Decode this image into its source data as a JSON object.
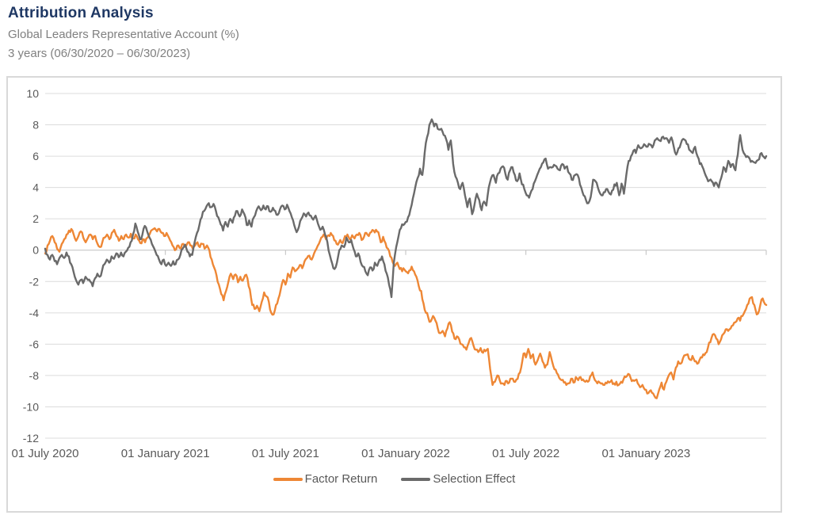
{
  "header": {
    "title": "Attribution Analysis",
    "subtitle1": "Global Leaders Representative Account (%)",
    "subtitle2": "3 years (06/30/2020 – 06/30/2023)"
  },
  "colors": {
    "title_text": "#1F3864",
    "subtitle_text": "#808080",
    "axis_text": "#595959",
    "grid": "#DCDCDC",
    "zero_line": "#BFBFBF",
    "panel_border": "#D9D9D9",
    "factor_return": "#EE8735",
    "selection_effect": "#6A6A6A"
  },
  "chart_data": {
    "type": "line",
    "title": "Attribution Analysis",
    "subtitle": "Global Leaders Representative Account (%), 3 years (06/30/2020 – 06/30/2023)",
    "xlabel": "",
    "ylabel": "",
    "ylim": [
      -12,
      10
    ],
    "y_tick_step": 2,
    "y_ticks": [
      10,
      8,
      6,
      4,
      2,
      0,
      -2,
      -4,
      -6,
      -8,
      -10,
      -12
    ],
    "x_labels": [
      "01 July 2020",
      "01 January 2021",
      "01 July 2021",
      "01 January 2022",
      "01 July 2022",
      "01 January 2023"
    ],
    "x_range_note": "series values sampled uniformly in time from 01 Jul 2020 to 30 Jun 2023",
    "grid": "horizontal",
    "legend_position": "bottom-center",
    "noise_amplitude": 0.15,
    "series": [
      {
        "name": "Factor Return",
        "key": "factor-return",
        "color": "#EE8735",
        "values": [
          -0.2,
          0.3,
          0.6,
          0.9,
          0.5,
          0.1,
          -0.1,
          0.4,
          0.7,
          1.0,
          1.25,
          1.35,
          1.0,
          0.6,
          0.9,
          1.2,
          0.8,
          0.5,
          0.8,
          1.0,
          0.7,
          0.9,
          0.4,
          0.2,
          0.5,
          0.8,
          1.0,
          0.7,
          1.1,
          1.3,
          0.9,
          0.6,
          0.9,
          0.7,
          1.0,
          0.8,
          1.05,
          0.75,
          1.0,
          0.7,
          0.45,
          0.7,
          0.5,
          0.8,
          1.05,
          1.3,
          1.4,
          1.2,
          1.35,
          1.1,
          0.9,
          1.1,
          0.8,
          0.5,
          0.2,
          0.05,
          0.3,
          0.1,
          0.4,
          0.2,
          0.5,
          0.3,
          0.1,
          0.3,
          0.5,
          0.2,
          0.4,
          0.1,
          0.3,
          0.0,
          -0.6,
          -1.1,
          -1.6,
          -2.2,
          -2.8,
          -3.2,
          -2.6,
          -2.0,
          -1.5,
          -1.85,
          -1.55,
          -2.05,
          -1.7,
          -1.95,
          -1.6,
          -1.8,
          -2.5,
          -3.5,
          -3.75,
          -3.55,
          -3.9,
          -3.3,
          -2.7,
          -2.95,
          -3.3,
          -4.0,
          -4.1,
          -3.5,
          -3.1,
          -2.5,
          -1.9,
          -2.2,
          -1.5,
          -1.75,
          -1.1,
          -1.35,
          -1.2,
          -0.95,
          -1.15,
          -0.7,
          -0.5,
          -0.35,
          -0.6,
          -0.2,
          0.1,
          0.4,
          0.8,
          1.0,
          0.7,
          0.95,
          1.1,
          0.9,
          0.6,
          0.35,
          0.65,
          0.45,
          0.9,
          1.0,
          0.7,
          0.95,
          0.75,
          1.0,
          1.1,
          0.65,
          0.85,
          1.1,
          0.9,
          1.15,
          1.25,
          1.3,
          1.15,
          0.5,
          0.85,
          0.45,
          0.1,
          -0.4,
          -0.75,
          -1.0,
          -0.8,
          -1.2,
          -1.35,
          -1.25,
          -1.4,
          -1.3,
          -1.05,
          -1.35,
          -1.7,
          -2.3,
          -2.6,
          -3.4,
          -4.0,
          -4.3,
          -4.55,
          -4.2,
          -4.5,
          -5.0,
          -5.3,
          -5.15,
          -5.5,
          -5.0,
          -4.6,
          -5.2,
          -5.65,
          -5.5,
          -5.7,
          -6.0,
          -6.2,
          -6.35,
          -5.9,
          -5.6,
          -6.1,
          -6.35,
          -6.5,
          -6.25,
          -6.55,
          -6.45,
          -6.3,
          -7.6,
          -8.6,
          -8.4,
          -8.0,
          -8.3,
          -8.5,
          -8.6,
          -8.35,
          -8.45,
          -8.2,
          -8.4,
          -8.25,
          -7.9,
          -7.5,
          -6.6,
          -6.85,
          -6.3,
          -6.9,
          -6.65,
          -7.3,
          -7.0,
          -6.6,
          -7.1,
          -7.5,
          -7.3,
          -6.5,
          -7.1,
          -7.6,
          -7.85,
          -8.15,
          -8.3,
          -8.45,
          -8.6,
          -8.5,
          -8.2,
          -8.45,
          -8.1,
          -8.3,
          -8.1,
          -8.25,
          -8.4,
          -8.4,
          -8.05,
          -7.8,
          -8.3,
          -8.5,
          -8.45,
          -8.5,
          -8.6,
          -8.5,
          -8.45,
          -8.3,
          -8.5,
          -8.4,
          -8.6,
          -8.4,
          -8.25,
          -8.1,
          -7.9,
          -8.15,
          -8.3,
          -8.3,
          -8.5,
          -8.75,
          -8.6,
          -8.9,
          -9.15,
          -9.0,
          -9.1,
          -9.3,
          -9.45,
          -8.9,
          -8.45,
          -8.9,
          -8.4,
          -8.0,
          -7.8,
          -8.25,
          -7.5,
          -7.1,
          -7.25,
          -6.9,
          -6.7,
          -6.65,
          -7.0,
          -6.75,
          -7.1,
          -7.25,
          -7.0,
          -6.85,
          -6.7,
          -6.5,
          -5.9,
          -5.6,
          -5.35,
          -5.65,
          -6.0,
          -5.7,
          -5.35,
          -5.05,
          -5.15,
          -5.0,
          -4.8,
          -4.6,
          -4.35,
          -4.5,
          -4.2,
          -3.9,
          -3.5,
          -3.1,
          -3.0,
          -3.5,
          -4.1,
          -3.85,
          -3.15,
          -3.3,
          -3.5
        ]
      },
      {
        "name": "Selection Effect",
        "key": "selection-effect",
        "color": "#6A6A6A",
        "values": [
          0.1,
          -0.3,
          -0.6,
          -0.3,
          -0.7,
          -0.9,
          -0.5,
          -0.3,
          -0.5,
          -0.15,
          -0.4,
          -0.9,
          -1.4,
          -1.9,
          -2.2,
          -1.9,
          -2.1,
          -1.7,
          -1.9,
          -2.0,
          -2.3,
          -1.8,
          -1.5,
          -1.7,
          -1.3,
          -0.9,
          -0.6,
          -0.8,
          -0.4,
          -0.55,
          -0.2,
          -0.45,
          -0.15,
          -0.4,
          -0.1,
          0.15,
          0.5,
          1.0,
          1.7,
          1.2,
          0.7,
          1.0,
          1.55,
          1.2,
          0.8,
          0.4,
          0.1,
          -0.3,
          -0.6,
          -0.9,
          -0.6,
          -1.0,
          -0.8,
          -1.0,
          -0.7,
          -0.9,
          -0.6,
          -0.3,
          0.1,
          0.35,
          -0.1,
          -0.4,
          -0.3,
          0.5,
          1.1,
          1.6,
          2.1,
          2.5,
          2.8,
          3.0,
          2.75,
          2.95,
          2.5,
          2.1,
          1.65,
          1.25,
          1.8,
          1.5,
          2.0,
          1.75,
          2.2,
          2.5,
          2.15,
          2.6,
          2.3,
          1.6,
          1.9,
          1.5,
          2.1,
          2.5,
          2.8,
          2.55,
          2.85,
          2.6,
          2.8,
          2.45,
          2.7,
          2.5,
          2.25,
          2.6,
          2.85,
          2.6,
          2.9,
          2.5,
          2.1,
          1.6,
          1.15,
          1.5,
          2.0,
          2.35,
          2.15,
          2.4,
          2.2,
          1.95,
          2.2,
          1.7,
          1.3,
          1.5,
          1.0,
          0.5,
          -0.3,
          -0.85,
          -1.2,
          -0.8,
          0.0,
          0.3,
          0.2,
          0.8,
          0.5,
          0.65,
          0.1,
          -0.4,
          -0.2,
          -0.75,
          -1.05,
          -1.35,
          -1.6,
          -1.1,
          -1.3,
          -0.8,
          -1.0,
          -0.6,
          -0.4,
          -0.9,
          -1.5,
          -2.2,
          -3.0,
          -0.8,
          0.2,
          0.9,
          1.4,
          1.6,
          1.8,
          2.1,
          2.6,
          3.3,
          4.0,
          4.6,
          5.2,
          4.8,
          6.2,
          7.2,
          8.0,
          8.35,
          7.9,
          8.05,
          7.7,
          7.75,
          7.35,
          7.1,
          6.4,
          7.0,
          5.5,
          4.7,
          4.3,
          3.9,
          4.3,
          3.5,
          2.75,
          3.3,
          2.3,
          2.9,
          3.6,
          3.2,
          2.55,
          3.1,
          2.85,
          4.0,
          4.6,
          4.8,
          4.3,
          4.9,
          5.2,
          5.35,
          4.9,
          4.5,
          5.1,
          5.3,
          4.8,
          4.4,
          4.9,
          4.2,
          3.9,
          3.5,
          3.35,
          3.8,
          4.25,
          4.6,
          5.0,
          5.3,
          5.6,
          5.85,
          5.2,
          5.3,
          5.3,
          5.4,
          5.2,
          5.1,
          5.5,
          5.2,
          5.35,
          4.9,
          4.5,
          4.75,
          4.85,
          4.6,
          4.0,
          3.5,
          3.2,
          3.0,
          3.4,
          4.5,
          4.4,
          4.0,
          3.6,
          3.5,
          3.7,
          3.9,
          3.6,
          3.8,
          4.2,
          4.3,
          3.5,
          4.25,
          3.6,
          4.8,
          5.7,
          6.0,
          6.35,
          6.2,
          6.7,
          6.5,
          6.6,
          6.7,
          6.6,
          6.75,
          6.55,
          7.0,
          7.15,
          7.0,
          7.2,
          7.1,
          7.15,
          6.85,
          7.2,
          6.6,
          6.1,
          6.5,
          6.8,
          7.1,
          7.0,
          6.75,
          6.35,
          6.2,
          6.6,
          6.0,
          5.5,
          5.35,
          4.95,
          4.6,
          4.45,
          4.4,
          4.1,
          4.3,
          4.0,
          4.6,
          5.3,
          5.0,
          5.7,
          5.3,
          5.5,
          5.1,
          6.1,
          7.35,
          6.4,
          6.1,
          6.0,
          5.85,
          5.7,
          5.6,
          5.7,
          5.8,
          6.2,
          5.95,
          6.0
        ]
      }
    ]
  }
}
